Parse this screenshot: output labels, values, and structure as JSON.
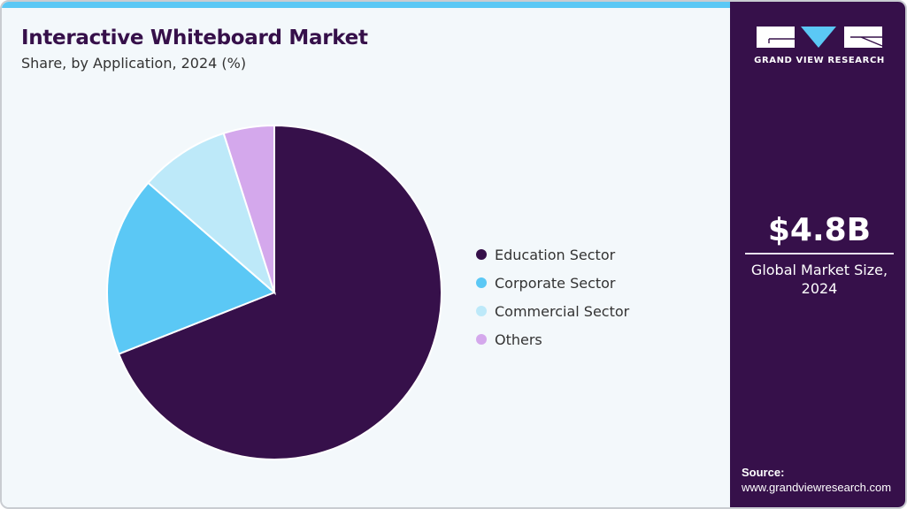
{
  "header": {
    "title": "Interactive Whiteboard Market",
    "subtitle": "Share, by Application, 2024 (%)"
  },
  "brand": {
    "logo_icon": "gvr-logo-icon",
    "name": "GRAND VIEW RESEARCH"
  },
  "market": {
    "value": "$4.8B",
    "label_line1": "Global Market Size,",
    "label_line2": "2024"
  },
  "source": {
    "label": "Source:",
    "url": "www.grandviewresearch.com"
  },
  "colors": {
    "accent_bar": "#5bc8f5",
    "side_panel": "#36104a",
    "background": "#f3f8fb"
  },
  "legend": [
    {
      "label": "Education Sector",
      "color": "#36104a"
    },
    {
      "label": "Corporate Sector",
      "color": "#5bc8f5"
    },
    {
      "label": "Commercial Sector",
      "color": "#bde9f9"
    },
    {
      "label": "Others",
      "color": "#d4a8ec"
    }
  ],
  "chart_data": {
    "type": "pie",
    "title": "Interactive Whiteboard Market",
    "subtitle": "Share, by Application, 2024 (%)",
    "categories": [
      "Education Sector",
      "Corporate Sector",
      "Commercial Sector",
      "Others"
    ],
    "values": [
      69.0,
      17.4,
      8.7,
      4.9
    ],
    "colors": [
      "#36104a",
      "#5bc8f5",
      "#bde9f9",
      "#d4a8ec"
    ],
    "start_angle": "12 o'clock, clockwise",
    "legend_position": "right",
    "data_labels": false
  }
}
